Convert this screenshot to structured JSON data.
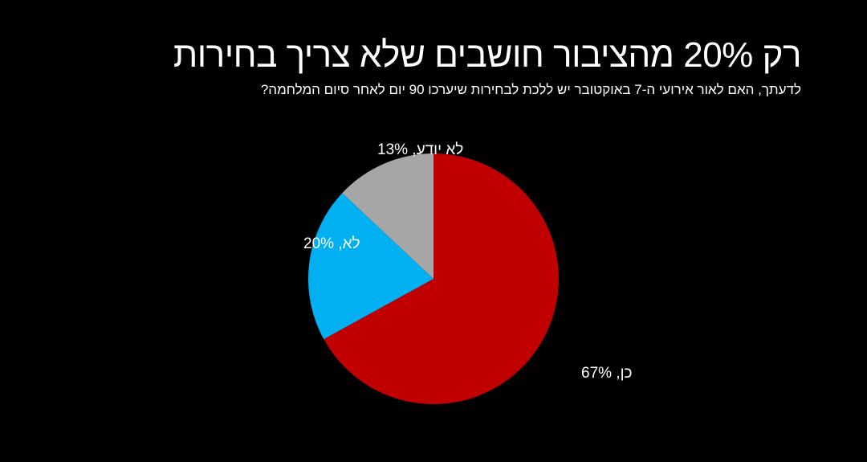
{
  "chart_data": {
    "type": "pie",
    "title": "רק 20% מהציבור חושבים שלא צריך בחירות",
    "subtitle": "לדעתך, האם לאור אירועי ה-7 באוקטובר יש ללכת לבחירות שיערכו 90 יום לאחר סיום המלחמה?",
    "slices": [
      {
        "category": "כן",
        "value": 67,
        "label": "כן, 67%",
        "color": "#C00000"
      },
      {
        "category": "לא",
        "value": 20,
        "label": "לא, 20%",
        "color": "#00B0F0"
      },
      {
        "category": "לא יודע",
        "value": 13,
        "label": "לא יודע, 13%",
        "color": "#A6A6A6"
      }
    ],
    "start": "12 o'clock",
    "direction": "clockwise",
    "legend": "none"
  }
}
